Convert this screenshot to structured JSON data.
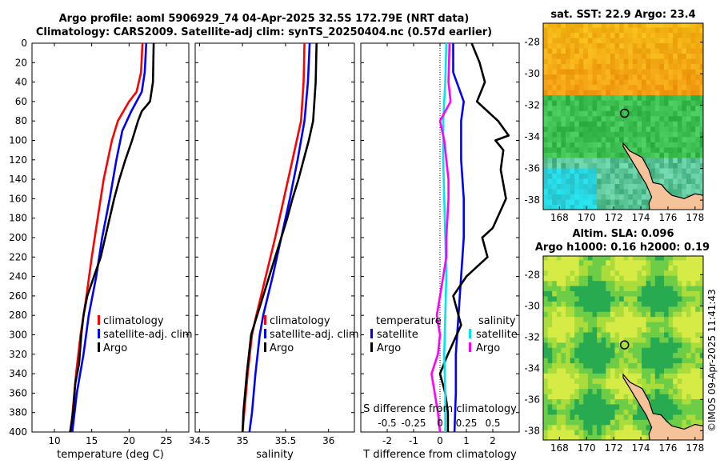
{
  "titles": {
    "line1": "Argo profile: aoml 5906929_74 04-Apr-2025 32.5S 172.79E (NRT data)",
    "line2": "Climatology: CARS2009. Satellite-adj clim: synTS_20250404.nc (0.57d earlier)"
  },
  "stamp": "©IMOS 09-Apr-2025 11:41:43",
  "colors": {
    "climatology": "#ff0000",
    "satellite": "#0000ff",
    "argo": "#000000",
    "cyan": "#00e5ee",
    "magenta": "#ff00ff",
    "land": "#f5c29a"
  },
  "chart_data": [
    {
      "type": "line",
      "name": "temperature",
      "xlabel": "temperature (deg C)",
      "ylabel": "",
      "xlim": [
        7,
        28
      ],
      "ylim": [
        400,
        0
      ],
      "xticks": [
        10,
        15,
        20,
        25
      ],
      "yticks": [
        0,
        20,
        40,
        60,
        80,
        100,
        120,
        140,
        160,
        180,
        200,
        220,
        240,
        260,
        280,
        300,
        320,
        340,
        360,
        380,
        400
      ],
      "legend": [
        "climatology",
        "satellite-adj. clim",
        "Argo"
      ],
      "series": [
        {
          "name": "climatology",
          "color": "#ff0000",
          "depth": [
            0,
            30,
            50,
            60,
            80,
            100,
            140,
            180,
            220,
            260,
            300,
            340,
            400
          ],
          "values": [
            21.8,
            21.6,
            21.0,
            20.0,
            18.5,
            17.7,
            16.6,
            15.8,
            15.0,
            14.3,
            13.5,
            12.9,
            12.2
          ]
        },
        {
          "name": "satellite-adj. clim",
          "color": "#0000ff",
          "depth": [
            0,
            30,
            50,
            70,
            90,
            120,
            160,
            200,
            240,
            280,
            320,
            360,
            400
          ],
          "values": [
            22.3,
            22.1,
            21.7,
            20.3,
            19.1,
            18.3,
            17.4,
            16.4,
            15.6,
            14.6,
            13.9,
            13.0,
            12.4
          ]
        },
        {
          "name": "Argo",
          "color": "#000000",
          "depth": [
            0,
            40,
            60,
            70,
            80,
            100,
            120,
            140,
            160,
            180,
            200,
            220,
            240,
            260,
            280,
            300,
            330,
            350,
            380,
            400
          ],
          "values": [
            23.3,
            23.2,
            22.8,
            21.7,
            21.2,
            20.4,
            19.5,
            18.7,
            18.0,
            17.4,
            16.8,
            16.2,
            15.3,
            14.4,
            13.9,
            13.6,
            13.3,
            12.8,
            12.5,
            12.1
          ]
        }
      ]
    },
    {
      "type": "line",
      "name": "salinity",
      "xlabel": "salinity",
      "ylabel": "",
      "xlim": [
        34.45,
        36.3
      ],
      "ylim": [
        400,
        0
      ],
      "xticks": [
        34.5,
        35,
        35.5,
        36
      ],
      "xtick_labels": [
        "34.5",
        "35",
        "35.5",
        "36"
      ],
      "legend": [
        "climatology",
        "satellite-adj. clim",
        "Argo"
      ],
      "series": [
        {
          "name": "climatology",
          "color": "#ff0000",
          "depth": [
            0,
            40,
            80,
            120,
            160,
            200,
            240,
            280,
            300,
            340,
            380,
            400
          ],
          "values": [
            35.72,
            35.71,
            35.68,
            35.58,
            35.48,
            35.38,
            35.27,
            35.16,
            35.11,
            35.06,
            35.02,
            35.0
          ]
        },
        {
          "name": "satellite-adj. clim",
          "color": "#0000ff",
          "depth": [
            0,
            40,
            80,
            120,
            160,
            200,
            240,
            280,
            300,
            340,
            380,
            400
          ],
          "values": [
            35.78,
            35.76,
            35.72,
            35.64,
            35.55,
            35.45,
            35.35,
            35.24,
            35.2,
            35.15,
            35.11,
            35.08
          ]
        },
        {
          "name": "Argo",
          "color": "#000000",
          "depth": [
            0,
            40,
            80,
            100,
            120,
            140,
            160,
            180,
            200,
            220,
            240,
            260,
            280,
            300,
            340,
            380,
            400
          ],
          "values": [
            35.86,
            35.85,
            35.82,
            35.77,
            35.71,
            35.65,
            35.58,
            35.52,
            35.45,
            35.38,
            35.31,
            35.24,
            35.17,
            35.1,
            35.05,
            35.01,
            35.0
          ]
        }
      ]
    },
    {
      "type": "line",
      "name": "difference",
      "xlabel": "T difference from climatology",
      "ylabel": "",
      "secondary_xlabel": "S difference from climatology",
      "xlim": [
        -3,
        3
      ],
      "ylim": [
        400,
        0
      ],
      "xticks": [
        -2,
        -1,
        0,
        1,
        2
      ],
      "secondary_xlim": [
        -0.75,
        0.75
      ],
      "secondary_xticks": [
        -0.5,
        -0.25,
        0,
        0.25,
        0.5
      ],
      "secondary_xtick_labels": [
        "-0.5",
        "-0.25",
        "0",
        "0.25",
        "0.5"
      ],
      "legend_temperature": {
        "title": "temperature",
        "items": [
          "satellite",
          "Argo"
        ]
      },
      "legend_salinity": {
        "title": "salinity",
        "items": [
          "satellite",
          "Argo"
        ]
      },
      "series": [
        {
          "name": "T satellite",
          "color": "#0000ff",
          "depth": [
            0,
            30,
            60,
            80,
            120,
            160,
            200,
            240,
            280,
            320,
            360,
            400
          ],
          "values": [
            0.5,
            0.5,
            0.9,
            0.8,
            0.8,
            0.9,
            0.9,
            0.8,
            0.7,
            0.6,
            0.6,
            0.55
          ]
        },
        {
          "name": "T Argo",
          "color": "#000000",
          "depth": [
            0,
            20,
            40,
            60,
            70,
            80,
            95,
            100,
            110,
            130,
            160,
            190,
            200,
            220,
            240,
            260,
            290,
            320,
            340,
            360,
            380,
            400
          ],
          "values": [
            1.2,
            1.5,
            1.7,
            1.4,
            1.8,
            2.2,
            2.6,
            2.1,
            2.4,
            2.3,
            2.5,
            2.0,
            1.6,
            1.8,
            1.0,
            0.5,
            0.8,
            0.3,
            0.0,
            0.2,
            0.3,
            0.3
          ]
        },
        {
          "name": "S satellite",
          "color": "#00e5ee",
          "depth": [
            0,
            40,
            80,
            120,
            160,
            200,
            240,
            280,
            320,
            360,
            400
          ],
          "values": [
            0.06,
            0.05,
            0.03,
            0.03,
            0.04,
            0.05,
            0.06,
            0.05,
            0.04,
            0.05,
            0.05
          ]
        },
        {
          "name": "S Argo",
          "color": "#ff00ff",
          "depth": [
            0,
            40,
            60,
            80,
            100,
            120,
            140,
            160,
            200,
            220,
            240,
            280,
            300,
            320,
            340,
            360,
            380,
            400
          ],
          "values": [
            0.09,
            0.08,
            0.1,
            0.0,
            0.04,
            0.06,
            0.08,
            0.08,
            0.06,
            0.06,
            0.03,
            -0.03,
            0.0,
            -0.02,
            -0.08,
            -0.05,
            -0.02,
            0.0
          ]
        }
      ]
    },
    {
      "type": "heatmap",
      "name": "sst-map",
      "title": "sat. SST: 22.9 Argo: 23.4",
      "xticks": [
        168,
        170,
        172,
        174,
        176,
        178
      ],
      "yticks": [
        -28,
        -30,
        -32,
        -34,
        -36,
        -38
      ],
      "xlim": [
        166.8,
        178.6
      ],
      "ylim": [
        -38.6,
        -26.8
      ],
      "profile_marker": [
        172.8,
        -32.5
      ],
      "colorscale": "SST"
    },
    {
      "type": "heatmap",
      "name": "sla-map",
      "title": "Altim. SLA: 0.096",
      "subtitle": "Argo h1000: 0.16 h2000: 0.19",
      "xticks": [
        168,
        170,
        172,
        174,
        176,
        178
      ],
      "yticks": [
        -28,
        -30,
        -32,
        -34,
        -36,
        -38
      ],
      "xlim": [
        166.8,
        178.6
      ],
      "ylim": [
        -38.6,
        -26.8
      ],
      "profile_marker": [
        172.8,
        -32.5
      ],
      "colorscale": "SLA"
    }
  ]
}
